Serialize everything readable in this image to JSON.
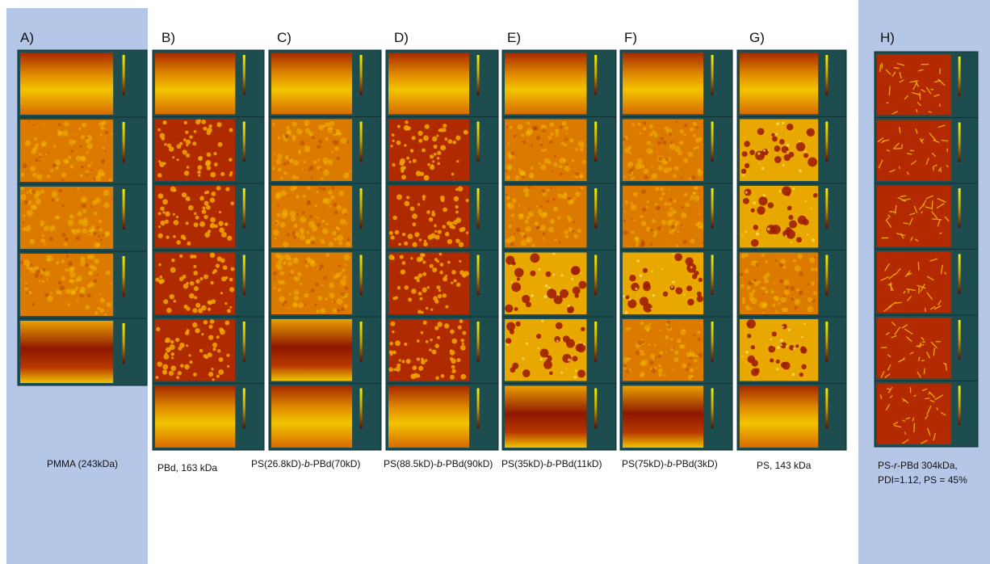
{
  "panels": [
    {
      "label": "A)",
      "caption": [
        [
          {
            "text": "PMMA (243kDa)",
            "italic": false
          }
        ]
      ]
    },
    {
      "label": "B)",
      "caption": [
        [
          {
            "text": "PBd, 163 kDa",
            "italic": false
          }
        ]
      ]
    },
    {
      "label": "C)",
      "caption": [
        [
          {
            "text": "PS(26.8kD)-",
            "italic": false
          },
          {
            "text": "b",
            "italic": true
          },
          {
            "text": "-PBd(70kD)",
            "italic": false
          }
        ]
      ]
    },
    {
      "label": "D)",
      "caption": [
        [
          {
            "text": "PS(88.5kD)-",
            "italic": false
          },
          {
            "text": "b",
            "italic": true
          },
          {
            "text": "-PBd(90kD)",
            "italic": false
          }
        ]
      ]
    },
    {
      "label": "E)",
      "caption": [
        [
          {
            "text": "PS(35kD)-",
            "italic": false
          },
          {
            "text": "b",
            "italic": true
          },
          {
            "text": "-PBd(11kD)",
            "italic": false
          }
        ]
      ]
    },
    {
      "label": "F)",
      "caption": [
        [
          {
            "text": "PS(75kD)-",
            "italic": false
          },
          {
            "text": "b",
            "italic": true
          },
          {
            "text": "-PBd(3kD)",
            "italic": false
          }
        ]
      ]
    },
    {
      "label": "G)",
      "caption": [
        [
          {
            "text": "PS, 143 kDa",
            "italic": false
          }
        ]
      ]
    },
    {
      "label": "H)",
      "caption": [
        [
          {
            "text": "PS-",
            "italic": false
          },
          {
            "text": "r",
            "italic": true
          },
          {
            "text": "-PBd 304kDa,",
            "italic": false
          }
        ],
        [
          {
            "text": "PDI=1.12, PS = 45%",
            "italic": false
          }
        ]
      ]
    }
  ]
}
